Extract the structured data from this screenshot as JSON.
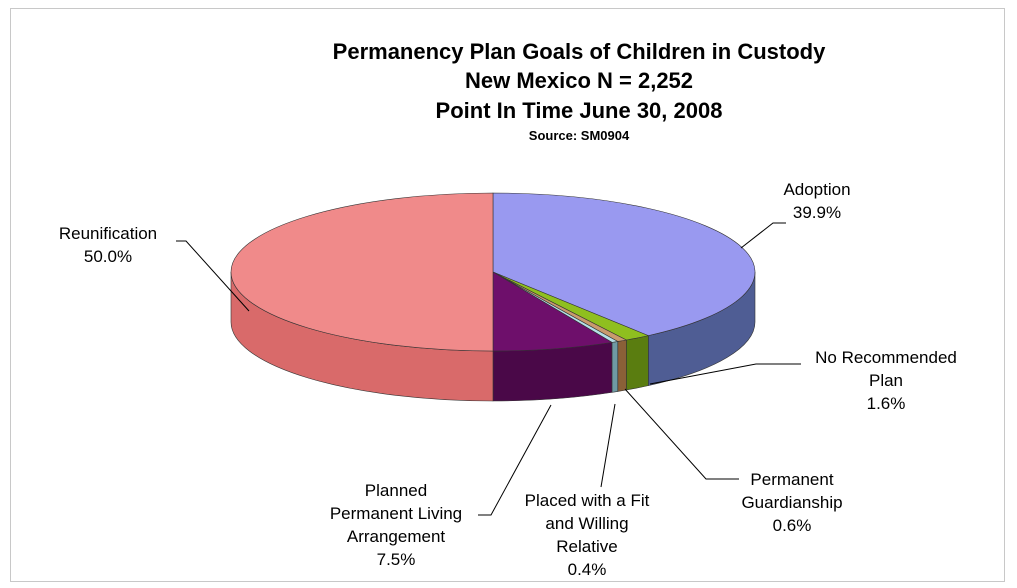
{
  "chart_data": {
    "type": "pie",
    "title": "Permanency Plan Goals of Children in Custody",
    "subtitle_lines": [
      "New Mexico N = 2,252",
      "Point In Time June 30, 2008"
    ],
    "source": "Source: SM0904",
    "slices": [
      {
        "category": "Adoption",
        "label_lines": [
          "Adoption"
        ],
        "value": 39.9,
        "value_label": "39.9%",
        "color": "#9999f0",
        "side_color": "#4f5d94"
      },
      {
        "category": "No Recommended Plan",
        "label_lines": [
          "No Recommended",
          "Plan"
        ],
        "value": 1.6,
        "value_label": "1.6%",
        "color": "#8fbf1f",
        "side_color": "#5a7d10"
      },
      {
        "category": "Permanent Guardianship",
        "label_lines": [
          "Permanent",
          "Guardianship"
        ],
        "value": 0.6,
        "value_label": "0.6%",
        "color": "#c99a6e",
        "side_color": "#8a6038"
      },
      {
        "category": "Placed with a Fit and Willing Relative",
        "label_lines": [
          "Placed with a Fit",
          "and Willing",
          "Relative"
        ],
        "value": 0.4,
        "value_label": "0.4%",
        "color": "#b5dfe8",
        "side_color": "#6f9aa4"
      },
      {
        "category": "Planned Permanent Living Arrangement",
        "label_lines": [
          "Planned",
          "Permanent Living",
          "Arrangement"
        ],
        "value": 7.5,
        "value_label": "7.5%",
        "color": "#6e0f6b",
        "side_color": "#4a0848"
      },
      {
        "category": "Reunification",
        "label_lines": [
          "Reunification"
        ],
        "value": 50.0,
        "value_label": "50.0%",
        "color": "#f08a8a",
        "side_color": "#d96a6a"
      }
    ],
    "legend": "none"
  }
}
